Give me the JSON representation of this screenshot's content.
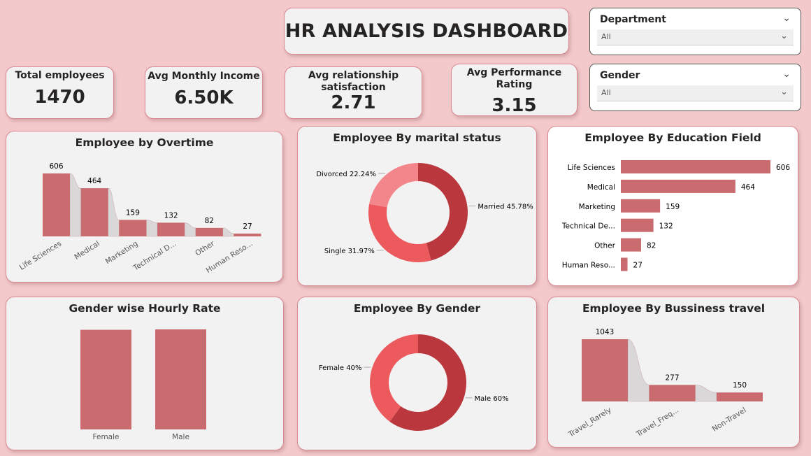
{
  "header": {
    "title": "HR ANALYSIS DASHBOARD"
  },
  "slicers": {
    "department": {
      "label": "Department",
      "value": "All"
    },
    "gender": {
      "label": "Gender",
      "value": "All"
    }
  },
  "kpis": {
    "total": {
      "label": "Total employees",
      "value": "1470"
    },
    "income": {
      "label": "Avg Monthly Income",
      "value": "6.50K"
    },
    "relationship": {
      "label": "Avg relationship satisfaction",
      "value": "2.71"
    },
    "performance": {
      "label": "Avg Performance Rating",
      "value": "3.15"
    }
  },
  "colors": {
    "bar": "#c96b6f",
    "dark": "#b9373d",
    "mid": "#ec5a5e",
    "light": "#f2868a",
    "ribbon": "#d7d5d5"
  },
  "chart_data": [
    {
      "id": "overtime",
      "type": "bar",
      "title": "Employee by Overtime",
      "categories": [
        "Life Sciences",
        "Medical",
        "Marketing",
        "Technical D...",
        "Other",
        "Human Reso..."
      ],
      "values": [
        606,
        464,
        159,
        132,
        82,
        27
      ]
    },
    {
      "id": "marital",
      "type": "pie",
      "title": "Employee By marital status",
      "labels": [
        "Married",
        "Single",
        "Divorced"
      ],
      "values": [
        45.78,
        31.97,
        22.24
      ],
      "display": [
        "Married 45.78%",
        "Single 31.97%",
        "Divorced 22.24%"
      ]
    },
    {
      "id": "education",
      "type": "bar",
      "orientation": "horizontal",
      "title": "Employee By Education Field",
      "categories": [
        "Life Sciences",
        "Medical",
        "Marketing",
        "Technical De...",
        "Other",
        "Human Reso..."
      ],
      "values": [
        606,
        464,
        159,
        132,
        82,
        27
      ]
    },
    {
      "id": "hourly",
      "type": "bar",
      "title": "Gender wise Hourly Rate",
      "categories": [
        "Female",
        "Male"
      ],
      "values": [
        65.6,
        65.9
      ]
    },
    {
      "id": "gender",
      "type": "pie",
      "title": "Employee By Gender",
      "labels": [
        "Male",
        "Female"
      ],
      "values": [
        60,
        40
      ],
      "display": [
        "Male 60%",
        "Female 40%"
      ]
    },
    {
      "id": "travel",
      "type": "bar",
      "title": "Employee By Bussiness travel",
      "categories": [
        "Travel_Rarely",
        "Travel_Freq...",
        "Non-Travel"
      ],
      "values": [
        1043,
        277,
        150
      ]
    }
  ]
}
